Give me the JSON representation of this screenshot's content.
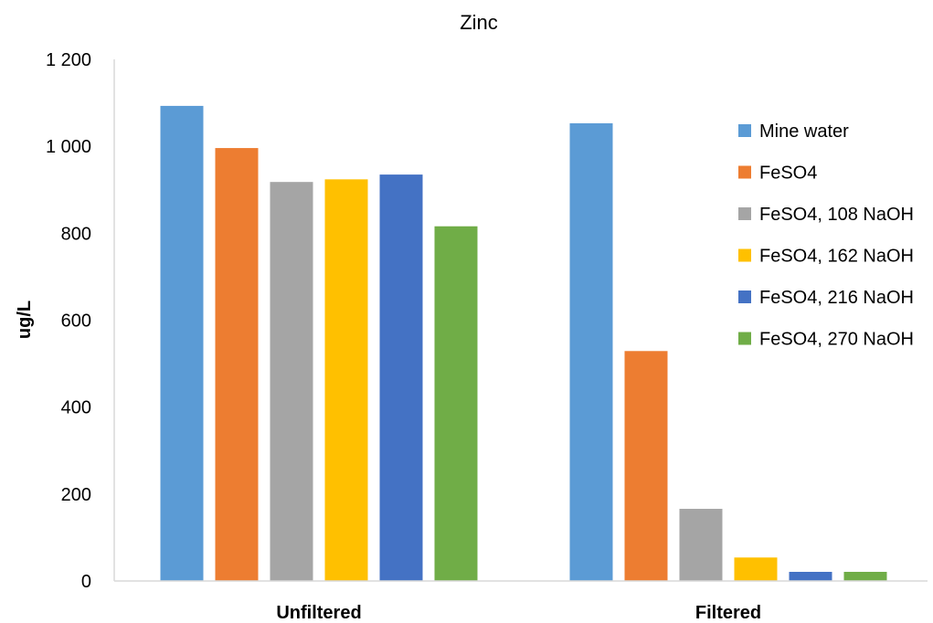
{
  "chart_data": {
    "type": "bar",
    "title": "Zinc",
    "xlabel": "",
    "ylabel": "ug/L",
    "ylim": [
      0,
      1200
    ],
    "yticks": [
      0,
      200,
      400,
      600,
      800,
      1000,
      1200
    ],
    "ytick_labels": [
      "0",
      "200",
      "400",
      "600",
      "800",
      "1 000",
      "1 200"
    ],
    "categories": [
      "Unfiltered",
      "Filtered"
    ],
    "grid": false,
    "legend_position": "right",
    "series": [
      {
        "name": "Mine water",
        "color": "#5B9BD5",
        "values": [
          1093,
          1053
        ]
      },
      {
        "name": "FeSO4",
        "color": "#ED7D31",
        "values": [
          996,
          529
        ]
      },
      {
        "name": "FeSO4, 108 NaOH",
        "color": "#A5A5A5",
        "values": [
          918,
          166
        ]
      },
      {
        "name": "FeSO4, 162 NaOH",
        "color": "#FFC000",
        "values": [
          924,
          54
        ]
      },
      {
        "name": "FeSO4, 216 NaOH",
        "color": "#4472C4",
        "values": [
          935,
          21
        ]
      },
      {
        "name": "FeSO4, 270 NaOH",
        "color": "#70AD47",
        "values": [
          816,
          21
        ]
      }
    ]
  }
}
